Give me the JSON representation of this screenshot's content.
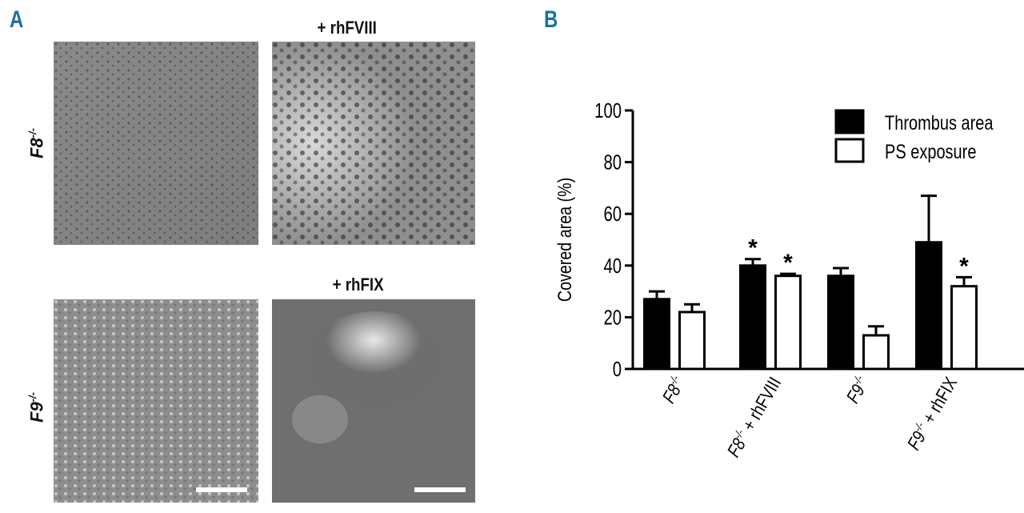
{
  "panel_a": {
    "letter": "A",
    "color": "#1a6fa0",
    "column_labels": [
      "+ rhFVIII",
      "+ rhFIX"
    ],
    "row_labels": [
      {
        "base": "F8",
        "sup": "-/-"
      },
      {
        "base": "F9",
        "sup": "-/-"
      }
    ]
  },
  "panel_b": {
    "letter": "B",
    "color": "#1a6fa0"
  },
  "chart_data": {
    "type": "bar",
    "ylabel": "Covered area (%)",
    "ylim": [
      0,
      100
    ],
    "yticks": [
      0,
      20,
      40,
      60,
      80,
      100
    ],
    "categories": [
      {
        "base": "F8",
        "sup": "-/-",
        "suffix": ""
      },
      {
        "base": "F8",
        "sup": "-/-",
        "suffix": " + rhFVIII"
      },
      {
        "base": "F9",
        "sup": "-/-",
        "suffix": ""
      },
      {
        "base": "F9",
        "sup": "-/-",
        "suffix": " + rhFIX"
      }
    ],
    "series": [
      {
        "name": "Thrombus area",
        "fill": "#000000",
        "values": [
          27,
          40,
          36,
          49
        ],
        "errors": [
          3,
          2.5,
          3,
          18
        ],
        "significance": [
          "",
          "*",
          "",
          ""
        ]
      },
      {
        "name": "PS exposure",
        "fill": "#ffffff",
        "values": [
          22,
          36,
          13,
          32
        ],
        "errors": [
          3,
          0.8,
          3.5,
          3.5
        ],
        "significance": [
          "",
          "*",
          "",
          "*"
        ]
      }
    ],
    "legend_position": "top-right",
    "grid": false
  }
}
